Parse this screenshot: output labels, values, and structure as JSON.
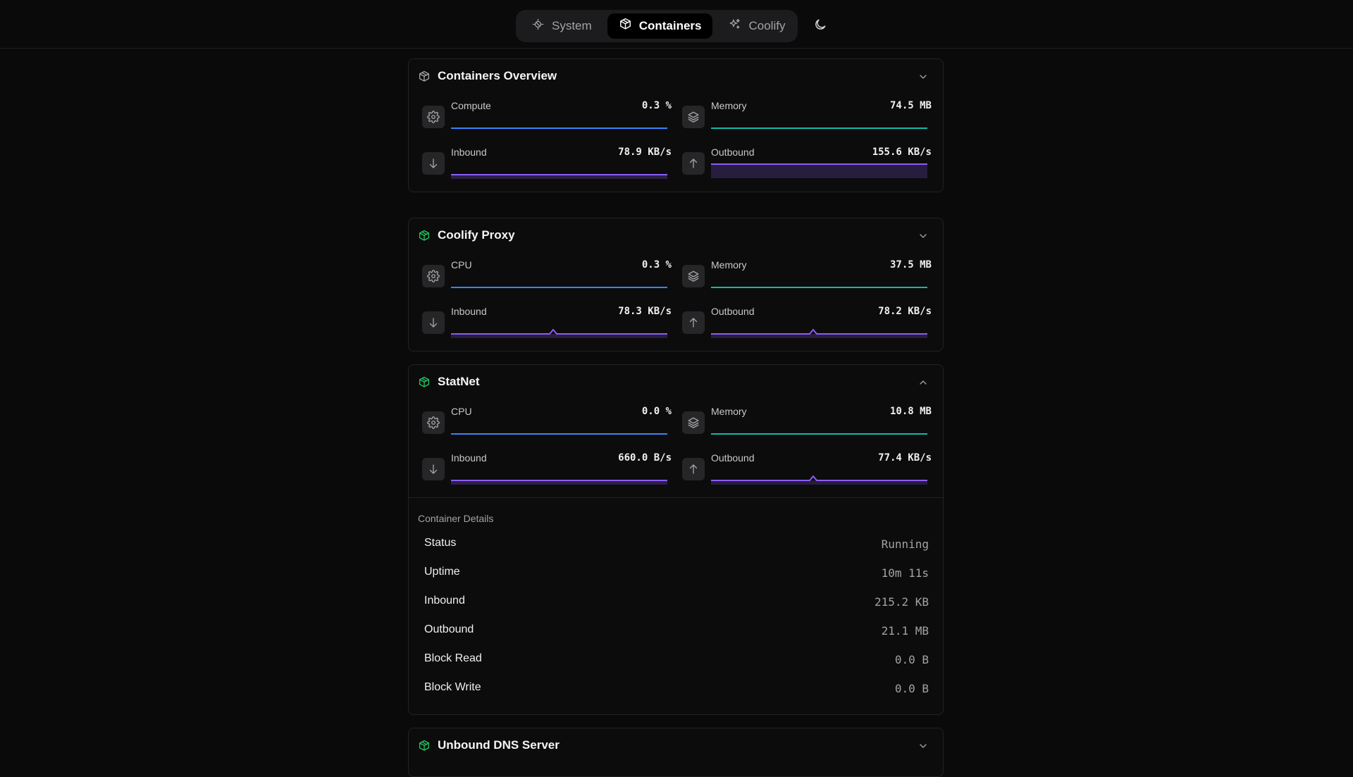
{
  "nav": {
    "tabs": [
      {
        "label": "System",
        "icon": "cpu-chip-icon"
      },
      {
        "label": "Containers",
        "icon": "box-icon"
      },
      {
        "label": "Coolify",
        "icon": "sparkles-icon"
      }
    ],
    "active": "Containers",
    "theme_icon": "moon-icon"
  },
  "colors": {
    "cpu_line": "#3b82f6",
    "memory_line": "#14b8a6",
    "network_line": "#8b5cf6",
    "status_green": "#22c55e"
  },
  "cards": [
    {
      "title": "Containers Overview",
      "icon": "box-icon",
      "expanded": false,
      "metrics": [
        {
          "label": "Compute",
          "value": "0.3 %",
          "icon": "gear-icon"
        },
        {
          "label": "Memory",
          "value": "74.5 MB",
          "icon": "layers-icon"
        },
        {
          "label": "Inbound",
          "value": "78.9 KB/s",
          "icon": "arrow-down-icon"
        },
        {
          "label": "Outbound",
          "value": "155.6 KB/s",
          "icon": "arrow-up-icon"
        }
      ]
    },
    {
      "title": "Coolify Proxy",
      "icon": "box-icon",
      "expanded": false,
      "metrics": [
        {
          "label": "CPU",
          "value": "0.3 %",
          "icon": "gear-icon"
        },
        {
          "label": "Memory",
          "value": "37.5 MB",
          "icon": "layers-icon"
        },
        {
          "label": "Inbound",
          "value": "78.3 KB/s",
          "icon": "arrow-down-icon"
        },
        {
          "label": "Outbound",
          "value": "78.2 KB/s",
          "icon": "arrow-up-icon"
        }
      ]
    },
    {
      "title": "StatNet",
      "icon": "box-icon",
      "expanded": true,
      "metrics": [
        {
          "label": "CPU",
          "value": "0.0 %",
          "icon": "gear-icon"
        },
        {
          "label": "Memory",
          "value": "10.8 MB",
          "icon": "layers-icon"
        },
        {
          "label": "Inbound",
          "value": "660.0 B/s",
          "icon": "arrow-down-icon"
        },
        {
          "label": "Outbound",
          "value": "77.4 KB/s",
          "icon": "arrow-up-icon"
        }
      ],
      "details_title": "Container Details",
      "details": [
        {
          "key": "Status",
          "value": "Running"
        },
        {
          "key": "Uptime",
          "value": "10m 11s"
        },
        {
          "key": "Inbound",
          "value": "215.2 KB"
        },
        {
          "key": "Outbound",
          "value": "21.1 MB"
        },
        {
          "key": "Block Read",
          "value": "0.0 B"
        },
        {
          "key": "Block Write",
          "value": "0.0 B"
        }
      ]
    },
    {
      "title": "Unbound DNS Server",
      "icon": "box-icon",
      "expanded": false
    }
  ]
}
